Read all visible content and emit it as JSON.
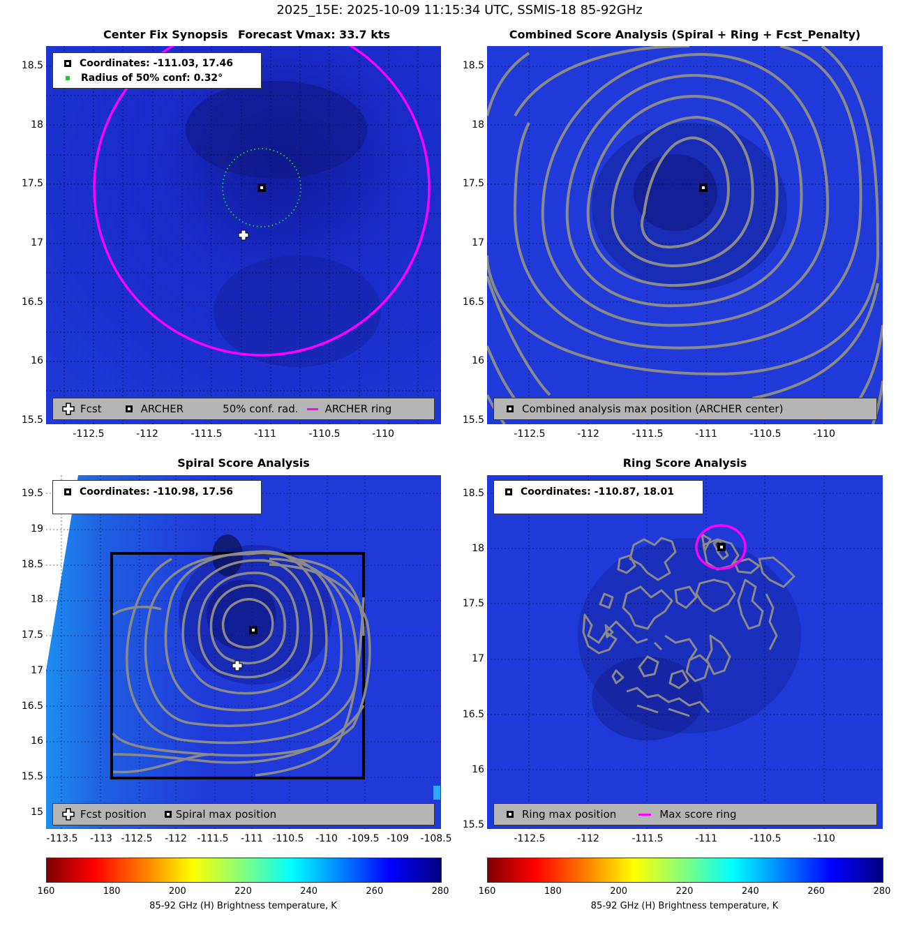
{
  "title": "2025_15E: 2025-10-09 11:15:34 UTC, SSMIS-18 85-92GHz",
  "colors": {
    "ring": "#ff00ff",
    "contour": "#8a8a8a",
    "conf": "#22cc22",
    "box": "#000000"
  },
  "colorbar": {
    "label": "85-92 GHz (H) Brightness temperature, K",
    "ticks": [
      "160",
      "180",
      "200",
      "220",
      "240",
      "260",
      "280"
    ],
    "range": [
      160,
      280
    ]
  },
  "panels": {
    "synopsis": {
      "title_left": "Center Fix Synopsis",
      "title_right": "Forecast Vmax: 33.7 kts",
      "legend_coords": "Coordinates: -111.03, 17.46",
      "legend_radius": "Radius of 50% conf: 0.32°",
      "bottom_legend": {
        "fcst": "Fcst",
        "archer": "ARCHER",
        "conf": "50% conf. rad.",
        "ring": "ARCHER ring"
      }
    },
    "combined": {
      "title": "Combined Score Analysis (Spiral + Ring + Fcst_Penalty)",
      "bottom_legend": "Combined analysis max position (ARCHER center)"
    },
    "spiral": {
      "title": "Spiral Score Analysis",
      "legend_coords": "Coordinates: -110.98, 17.56",
      "bottom_legend": {
        "fcst": "Fcst position",
        "spiral": "Spiral max position"
      }
    },
    "ring": {
      "title": "Ring Score Analysis",
      "legend_coords": "Coordinates: -110.87, 18.01",
      "bottom_legend": {
        "ring_max": "Ring max position",
        "ring": "Max score ring"
      }
    }
  },
  "chart_data": [
    {
      "type": "heatmap",
      "title": "Center Fix Synopsis    Forecast Vmax: 33.7 kts",
      "xlim": [
        -112.85,
        -109.5
      ],
      "ylim": [
        15.5,
        18.67
      ],
      "xticks": [
        -112.5,
        -112,
        -111.5,
        -111,
        -110.5,
        -110
      ],
      "yticks": [
        15.5,
        16,
        16.5,
        17,
        17.5,
        18,
        18.5
      ],
      "archer_center": [
        -111.03,
        17.46
      ],
      "forecast_position": [
        -111.18,
        17.07
      ],
      "conf_radius_deg": 0.32,
      "archer_ring_radius_deg": 1.38
    },
    {
      "type": "heatmap",
      "title": "Combined Score Analysis (Spiral + Ring + Fcst_Penalty)",
      "xlim": [
        -112.85,
        -109.5
      ],
      "ylim": [
        15.5,
        18.67
      ],
      "xticks": [
        -112.5,
        -112,
        -111.5,
        -111,
        -110.5,
        -110
      ],
      "yticks": [
        15.5,
        16,
        16.5,
        17,
        17.5,
        18,
        18.5
      ],
      "max_position": [
        -111.03,
        17.46
      ]
    },
    {
      "type": "heatmap",
      "title": "Spiral Score Analysis",
      "xlim": [
        -113.6,
        -108.4
      ],
      "ylim": [
        14.8,
        19.77
      ],
      "xticks": [
        -113.5,
        -113,
        -112.5,
        -112,
        -111.5,
        -111,
        -110.5,
        -110,
        -109.5,
        -109,
        -108.5
      ],
      "yticks": [
        15,
        15.5,
        16,
        16.5,
        17,
        17.5,
        18,
        18.5,
        19,
        19.5
      ],
      "spiral_max_position": [
        -110.98,
        17.56
      ],
      "forecast_position": [
        -111.18,
        17.07
      ],
      "search_box": {
        "lon": [
          -112.75,
          -109.45
        ],
        "lat": [
          15.47,
          18.67
        ]
      }
    },
    {
      "type": "heatmap",
      "title": "Ring Score Analysis",
      "xlim": [
        -112.85,
        -109.5
      ],
      "ylim": [
        15.5,
        18.67
      ],
      "xticks": [
        -112.5,
        -112,
        -111.5,
        -111,
        -110.5,
        -110
      ],
      "yticks": [
        15.5,
        16,
        16.5,
        17,
        17.5,
        18,
        18.5
      ],
      "ring_max_position": [
        -110.87,
        18.01
      ],
      "max_score_ring_radius_deg": 0.2
    }
  ]
}
